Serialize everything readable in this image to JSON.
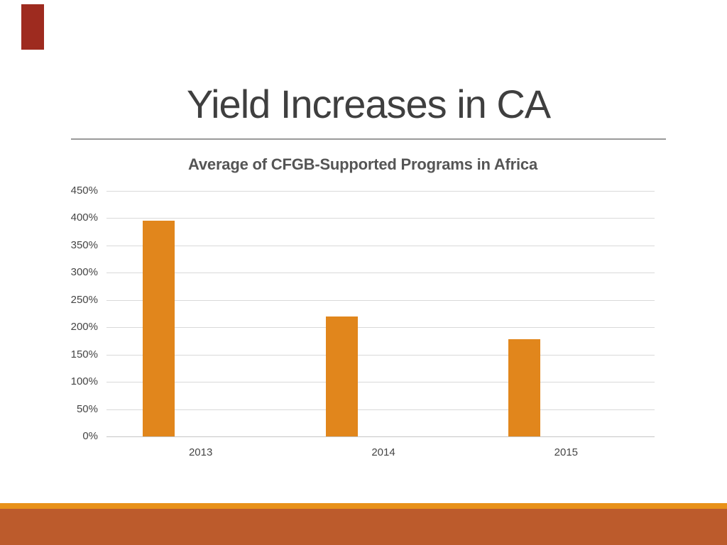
{
  "slide": {
    "title": "Yield Increases in CA"
  },
  "theme": {
    "corner_accent_color": "#9E2B1F",
    "footer_stripe_color": "#E89119",
    "footer_band_color": "#BC5B2C",
    "bar_color": "#E1861C",
    "gridline_color": "#D9D9D9",
    "axis_line_color": "#C6C6C6",
    "title_color": "#3F3F3F",
    "title_rule_color": "#9A9A9A",
    "chart_title_color": "#555555",
    "tick_label_color": "#454545"
  },
  "chart_data": {
    "type": "bar",
    "title": "Average of CFGB-Supported Programs in Africa",
    "categories": [
      "2013",
      "2014",
      "2015"
    ],
    "values": [
      395,
      220,
      178
    ],
    "unit": "%",
    "ylim": [
      0,
      450
    ],
    "ytick_step": 50,
    "ytick_labels": [
      "0%",
      "50%",
      "100%",
      "150%",
      "200%",
      "250%",
      "300%",
      "350%",
      "400%",
      "450%"
    ],
    "grid": true,
    "legend": false,
    "xlabel": "",
    "ylabel": ""
  }
}
